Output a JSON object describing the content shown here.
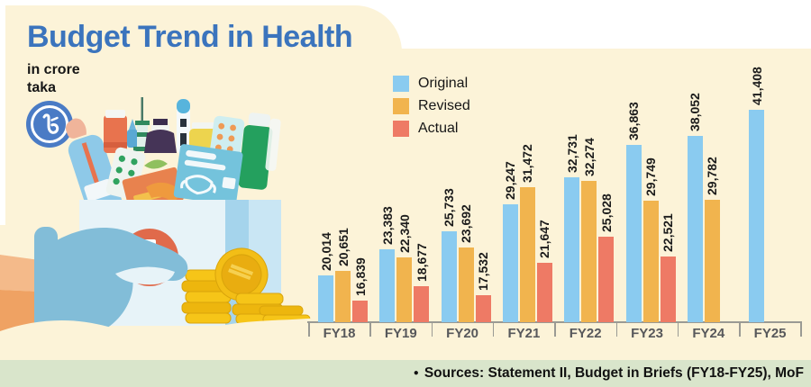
{
  "title": "Budget Trend in Health",
  "subtitle": {
    "line1": "in crore",
    "line2": "taka"
  },
  "footer": {
    "bullet": "●",
    "text": "Sources: Statement II, Budget in Briefs (FY18-FY25), MoF"
  },
  "icons": {
    "taka_badge": "taka-currency-icon",
    "cross": "medical-cross-icon"
  },
  "colors": {
    "title_blue": "#3b74bd",
    "panel_cream": "#fcf3d8",
    "footer_band_green": "#d9e5cb",
    "original_blue": "#8acbf0",
    "revised_orange": "#f1b44e",
    "actual_red": "#ee7a65",
    "axis_gray": "#9a9a94",
    "fy_label_gray": "#57585b",
    "taka_badge_blue": "#4a7bc5",
    "cross_orange": "#e06a4b"
  },
  "legend": [
    {
      "label": "Original",
      "color": "#8acbf0"
    },
    {
      "label": "Revised",
      "color": "#f1b44e"
    },
    {
      "label": "Actual",
      "color": "#ee7a65"
    }
  ],
  "chart_data": {
    "type": "bar",
    "title": "Budget Trend in Health",
    "unit": "in crore taka",
    "categories": [
      "FY18",
      "FY19",
      "FY20",
      "FY21",
      "FY22",
      "FY23",
      "FY24",
      "FY25"
    ],
    "series": [
      {
        "name": "Original",
        "color": "#8acbf0",
        "values": [
          20014,
          23383,
          25733,
          29247,
          32731,
          36863,
          38052,
          41408
        ]
      },
      {
        "name": "Revised",
        "color": "#f1b44e",
        "values": [
          20651,
          22340,
          23692,
          31472,
          32274,
          29749,
          29782,
          null
        ]
      },
      {
        "name": "Actual",
        "color": "#ee7a65",
        "values": [
          16839,
          18677,
          17532,
          21647,
          25028,
          22521,
          null,
          null
        ]
      }
    ],
    "value_labels": true,
    "label_rotation_deg": 90,
    "legend_position": "top-left-of-plot",
    "grid": false,
    "baseline_offset_note": "bars in source graphic are not zero-based"
  }
}
